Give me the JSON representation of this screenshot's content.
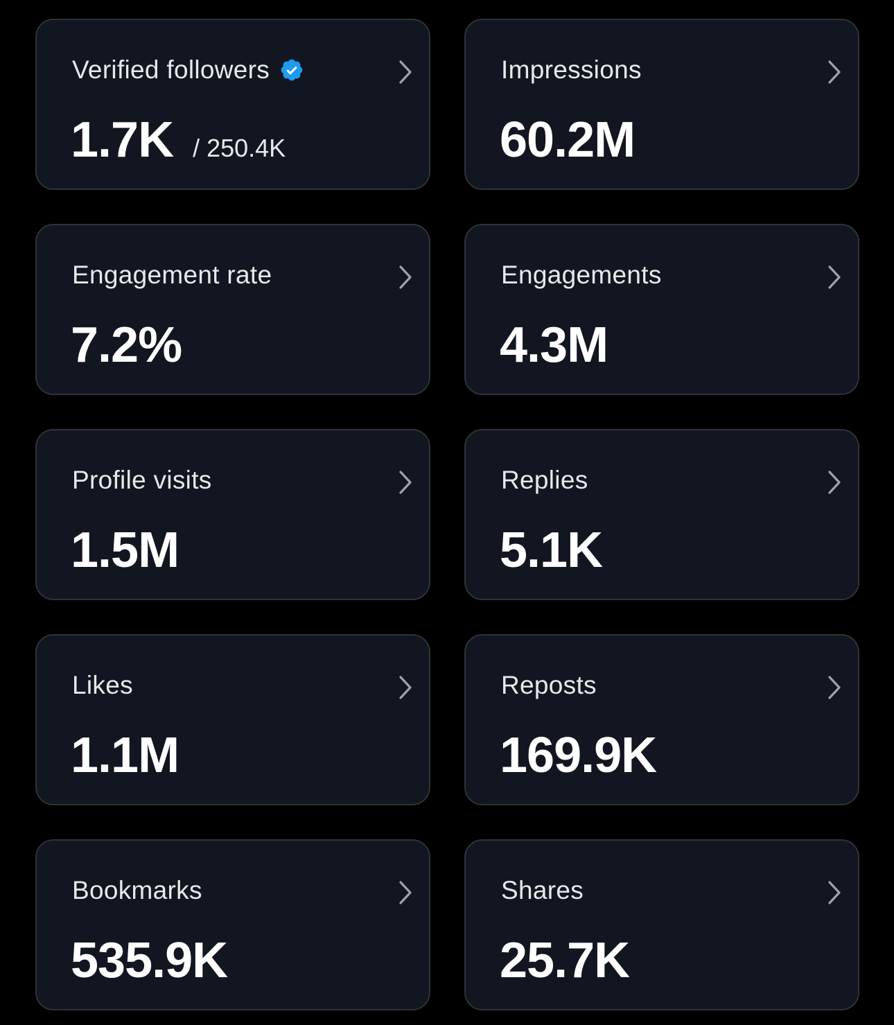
{
  "colors": {
    "background": "#000000",
    "card_background": "#121620",
    "card_border": "#2f3338",
    "text_primary": "#ffffff",
    "text_secondary": "#e7e9ea",
    "verified_badge": "#1d9bf0",
    "chevron": "#a0a4a8"
  },
  "cards": [
    {
      "title": "Verified followers",
      "value": "1.7K",
      "subvalue": "/ 250.4K",
      "title_icon": "verified-badge-icon",
      "action_icon": "chevron-right-icon"
    },
    {
      "title": "Impressions",
      "value": "60.2M",
      "action_icon": "chevron-right-icon"
    },
    {
      "title": "Engagement rate",
      "value": "7.2%",
      "action_icon": "chevron-right-icon"
    },
    {
      "title": "Engagements",
      "value": "4.3M",
      "action_icon": "chevron-right-icon"
    },
    {
      "title": "Profile visits",
      "value": "1.5M",
      "action_icon": "chevron-right-icon"
    },
    {
      "title": "Replies",
      "value": "5.1K",
      "action_icon": "chevron-right-icon"
    },
    {
      "title": "Likes",
      "value": "1.1M",
      "action_icon": "chevron-right-icon"
    },
    {
      "title": "Reposts",
      "value": "169.9K",
      "action_icon": "chevron-right-icon"
    },
    {
      "title": "Bookmarks",
      "value": "535.9K",
      "action_icon": "chevron-right-icon"
    },
    {
      "title": "Shares",
      "value": "25.7K",
      "action_icon": "chevron-right-icon"
    }
  ]
}
